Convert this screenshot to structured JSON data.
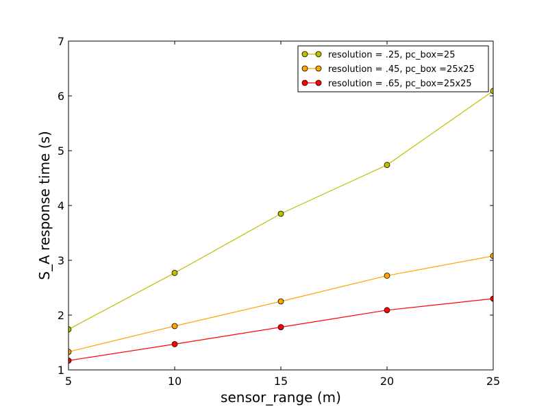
{
  "chart_data": {
    "type": "line",
    "title": "",
    "xlabel": "sensor_range (m)",
    "ylabel": "S_A response time (s)",
    "x": [
      5,
      10,
      15,
      20,
      25
    ],
    "xlim": [
      5,
      25
    ],
    "ylim": [
      1,
      7
    ],
    "xticks": [
      "5",
      "10",
      "15",
      "20",
      "25"
    ],
    "yticks": [
      "1",
      "2",
      "3",
      "4",
      "5",
      "6",
      "7"
    ],
    "grid": false,
    "legend_position": "top-right",
    "series": [
      {
        "name": "resolution = .25, pc_box=25",
        "color": "#bfbf00",
        "values": [
          1.74,
          2.77,
          3.85,
          4.74,
          6.09
        ]
      },
      {
        "name": "resolution = .45, pc_box =25x25",
        "color": "#ffa500",
        "values": [
          1.33,
          1.8,
          2.25,
          2.72,
          3.08
        ]
      },
      {
        "name": "resolution = .65, pc_box=25x25",
        "color": "#ff0000",
        "values": [
          1.17,
          1.47,
          1.78,
          2.09,
          2.3
        ]
      }
    ]
  }
}
